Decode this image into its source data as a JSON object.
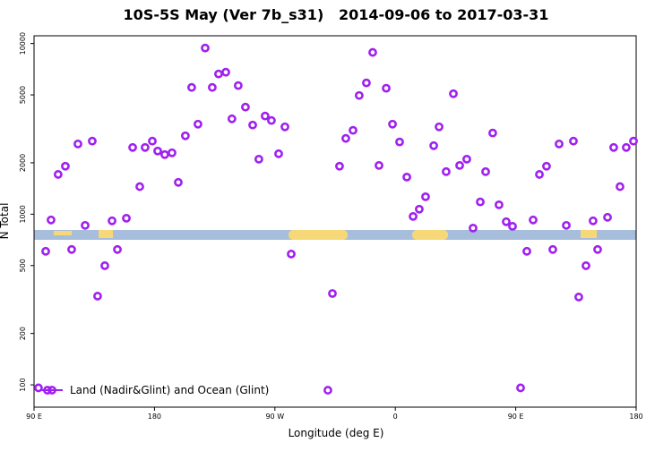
{
  "chart_data": {
    "type": "scatter",
    "title": "10S-5S May (Ver 7b_s31)   2014-09-06 to 2017-03-31",
    "xlabel": "Longitude (deg E)",
    "ylabel": "N Total",
    "xlim": [
      90,
      540
    ],
    "ylim": [
      74,
      11100
    ],
    "log_y": true,
    "legend": "lower left",
    "xticks": [
      {
        "value": 90,
        "label": "90 E"
      },
      {
        "value": 180,
        "label": "180"
      },
      {
        "value": 270,
        "label": "90 W"
      },
      {
        "value": 360,
        "label": "0"
      },
      {
        "value": 450,
        "label": "90 E"
      },
      {
        "value": 540,
        "label": "180"
      }
    ],
    "yticks": [
      100,
      200,
      500,
      1000,
      2000,
      5000,
      10000
    ],
    "x": [
      93.3,
      98.7,
      100.0,
      102.7,
      108.0,
      113.4,
      118.1,
      122.8,
      128.2,
      133.5,
      137.5,
      142.9,
      148.3,
      152.3,
      159.0,
      163.7,
      169.0,
      173.0,
      178.4,
      182.4,
      187.7,
      193.1,
      197.8,
      203.1,
      207.8,
      212.5,
      217.9,
      223.2,
      227.9,
      233.3,
      237.9,
      242.6,
      248.0,
      253.4,
      258.0,
      262.7,
      267.4,
      272.8,
      277.5,
      282.2,
      309.6,
      313.0,
      318.3,
      323.0,
      328.4,
      333.0,
      338.4,
      343.1,
      347.8,
      353.2,
      357.9,
      363.2,
      368.6,
      373.3,
      377.9,
      382.6,
      388.7,
      392.7,
      398.0,
      403.4,
      408.1,
      413.4,
      418.1,
      423.5,
      427.5,
      432.8,
      437.5,
      442.9,
      447.6,
      453.6,
      458.3,
      463.0,
      467.7,
      473.0,
      477.7,
      482.4,
      487.8,
      493.1,
      497.1,
      502.5,
      507.8,
      511.2,
      518.6,
      523.2,
      527.9,
      532.6,
      538.0
    ],
    "series": [
      {
        "name": "Land (Nadir&Glint) and Ocean (Glint)",
        "color": "#a020f0",
        "values": [
          96,
          606,
          93,
          925,
          1710,
          1910,
          621,
          2580,
          860,
          2680,
          331,
          499,
          914,
          621,
          947,
          2460,
          1450,
          2460,
          2680,
          2345,
          2235,
          2290,
          1536,
          2880,
          5530,
          3370,
          9410,
          5530,
          6630,
          6790,
          3620,
          5670,
          4240,
          3330,
          2100,
          3760,
          3540,
          2260,
          3250,
          584,
          93,
          343,
          1910,
          2780,
          3100,
          4960,
          5880,
          8870,
          1930,
          5470,
          3370,
          2650,
          1650,
          970,
          1070,
          1265,
          2520,
          3250,
          1775,
          5080,
          1930,
          2100,
          829,
          1180,
          1775,
          2990,
          1135,
          903,
          849,
          96,
          606,
          925,
          1710,
          1910,
          621,
          2580,
          860,
          2680,
          327,
          499,
          914,
          621,
          959,
          2460,
          1450,
          2460,
          2680
        ]
      }
    ]
  }
}
